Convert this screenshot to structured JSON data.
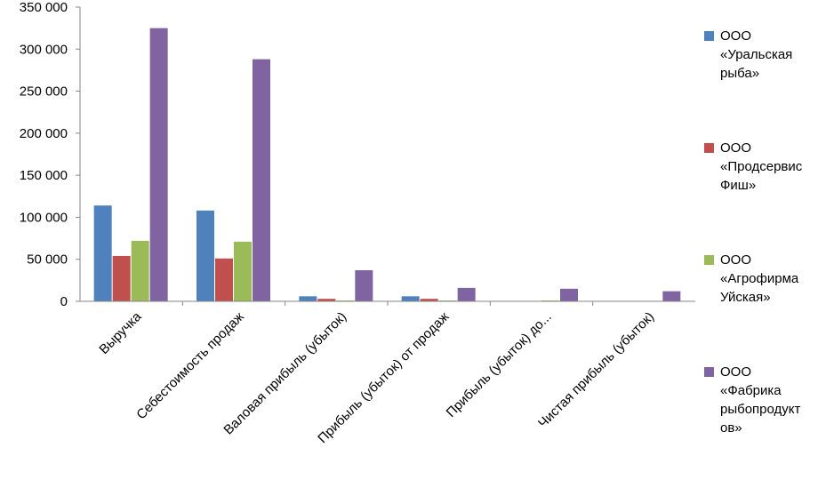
{
  "chart_data": {
    "type": "bar",
    "title": "",
    "xlabel": "",
    "ylabel": "",
    "ylim": [
      0,
      350000
    ],
    "yticks": [
      "0",
      "50 000",
      "100 000",
      "150 000",
      "200 000",
      "250 000",
      "300 000",
      "350 000"
    ],
    "grid": false,
    "legend_position": "right",
    "categories": [
      "Выручка",
      "Себестоимость продаж",
      "Валовая прибыль (убыток)",
      "Прибыль (убыток) от продаж",
      "Прибыль (убыток) до...",
      "Чистая прибыль (убыток)"
    ],
    "series": [
      {
        "name": "ООО «Уральская рыба»",
        "color": "#4f81bd",
        "values": [
          114000,
          108000,
          6000,
          6000,
          0,
          0
        ]
      },
      {
        "name": "ООО «Продсервис Фиш»",
        "color": "#c0504d",
        "values": [
          54000,
          51000,
          3000,
          3000,
          0,
          0
        ]
      },
      {
        "name": "ООО «Агрофирма Уйская»",
        "color": "#9bbb59",
        "values": [
          72000,
          71000,
          1000,
          1000,
          1000,
          0
        ]
      },
      {
        "name": "ООО «Фабрика рыбопродуктов»",
        "color": "#8064a2",
        "values": [
          325000,
          288000,
          37000,
          16000,
          15000,
          12000
        ]
      }
    ],
    "legend_labels": [
      "ООО\n«Уральская\nрыба»",
      "ООО\n«Продсервис\nФиш»",
      "ООО\n«Агрофирма\nУйская»",
      "ООО\n«Фабрика\nрыбопродукт\nов»"
    ]
  }
}
